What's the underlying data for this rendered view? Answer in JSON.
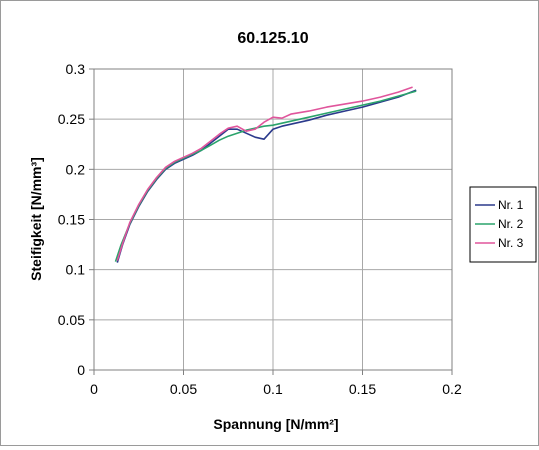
{
  "chart_data": {
    "type": "line",
    "title": "60.125.10",
    "xlabel": "Spannung  [N/mm²]",
    "ylabel": "Steifigkeit [N/mm³]",
    "xlim": [
      0,
      0.2
    ],
    "ylim": [
      0,
      0.3
    ],
    "x_ticks": [
      "0",
      "0.05",
      "0.1",
      "0.15",
      "0.2"
    ],
    "y_ticks": [
      "0",
      "0.05",
      "0.1",
      "0.15",
      "0.2",
      "0.25",
      "0.3"
    ],
    "grid": true,
    "legend_position": "right",
    "series": [
      {
        "name": "Nr. 1",
        "color": "#2b3a8c",
        "points": [
          [
            0.013,
            0.107
          ],
          [
            0.016,
            0.125
          ],
          [
            0.02,
            0.145
          ],
          [
            0.025,
            0.163
          ],
          [
            0.03,
            0.178
          ],
          [
            0.035,
            0.19
          ],
          [
            0.04,
            0.2
          ],
          [
            0.045,
            0.206
          ],
          [
            0.05,
            0.21
          ],
          [
            0.055,
            0.214
          ],
          [
            0.06,
            0.219
          ],
          [
            0.065,
            0.226
          ],
          [
            0.07,
            0.233
          ],
          [
            0.075,
            0.24
          ],
          [
            0.08,
            0.24
          ],
          [
            0.085,
            0.236
          ],
          [
            0.09,
            0.232
          ],
          [
            0.095,
            0.23
          ],
          [
            0.1,
            0.24
          ],
          [
            0.105,
            0.243
          ],
          [
            0.11,
            0.245
          ],
          [
            0.12,
            0.249
          ],
          [
            0.13,
            0.254
          ],
          [
            0.14,
            0.258
          ],
          [
            0.15,
            0.262
          ],
          [
            0.16,
            0.267
          ],
          [
            0.17,
            0.272
          ],
          [
            0.18,
            0.279
          ]
        ]
      },
      {
        "name": "Nr. 2",
        "color": "#2aa36b",
        "points": [
          [
            0.012,
            0.108
          ],
          [
            0.015,
            0.124
          ],
          [
            0.02,
            0.146
          ],
          [
            0.025,
            0.164
          ],
          [
            0.03,
            0.179
          ],
          [
            0.035,
            0.191
          ],
          [
            0.04,
            0.201
          ],
          [
            0.045,
            0.207
          ],
          [
            0.05,
            0.211
          ],
          [
            0.055,
            0.215
          ],
          [
            0.06,
            0.219
          ],
          [
            0.065,
            0.224
          ],
          [
            0.07,
            0.229
          ],
          [
            0.075,
            0.233
          ],
          [
            0.08,
            0.236
          ],
          [
            0.085,
            0.239
          ],
          [
            0.09,
            0.241
          ],
          [
            0.095,
            0.243
          ],
          [
            0.1,
            0.244
          ],
          [
            0.105,
            0.246
          ],
          [
            0.11,
            0.248
          ],
          [
            0.12,
            0.252
          ],
          [
            0.13,
            0.256
          ],
          [
            0.14,
            0.26
          ],
          [
            0.15,
            0.264
          ],
          [
            0.16,
            0.268
          ],
          [
            0.17,
            0.273
          ],
          [
            0.18,
            0.278
          ]
        ]
      },
      {
        "name": "Nr. 3",
        "color": "#e0559c",
        "points": [
          [
            0.013,
            0.109
          ],
          [
            0.016,
            0.126
          ],
          [
            0.02,
            0.147
          ],
          [
            0.025,
            0.165
          ],
          [
            0.03,
            0.18
          ],
          [
            0.035,
            0.192
          ],
          [
            0.04,
            0.202
          ],
          [
            0.045,
            0.208
          ],
          [
            0.05,
            0.212
          ],
          [
            0.055,
            0.216
          ],
          [
            0.06,
            0.221
          ],
          [
            0.065,
            0.228
          ],
          [
            0.07,
            0.235
          ],
          [
            0.075,
            0.241
          ],
          [
            0.08,
            0.243
          ],
          [
            0.085,
            0.238
          ],
          [
            0.09,
            0.24
          ],
          [
            0.095,
            0.247
          ],
          [
            0.1,
            0.252
          ],
          [
            0.105,
            0.251
          ],
          [
            0.11,
            0.255
          ],
          [
            0.12,
            0.258
          ],
          [
            0.13,
            0.262
          ],
          [
            0.14,
            0.265
          ],
          [
            0.15,
            0.268
          ],
          [
            0.16,
            0.272
          ],
          [
            0.17,
            0.277
          ],
          [
            0.178,
            0.282
          ]
        ]
      }
    ]
  }
}
